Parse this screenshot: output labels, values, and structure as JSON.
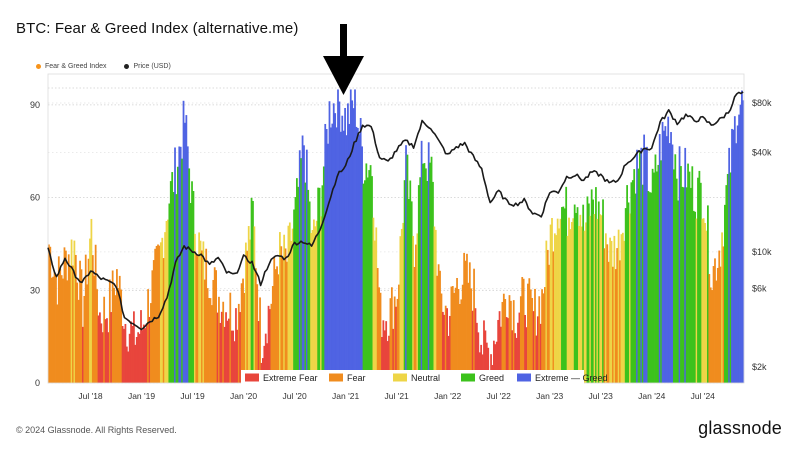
{
  "page": {
    "title": "BTC: Fear & Greed Index (alternative.me)",
    "top_legend": [
      {
        "label": "Fear & Greed Index",
        "color": "#f7931a"
      },
      {
        "label": "Price (USD)",
        "color": "#222222"
      }
    ],
    "copyright": "© 2024 Glassnode. All Rights Reserved.",
    "brand": "glassnode",
    "annotation_icon": "down-arrow-icon"
  },
  "chart_data": {
    "type": "bar",
    "title": "BTC: Fear & Greed Index (alternative.me)",
    "x_range": [
      "2018-02",
      "2024-11"
    ],
    "x_ticks": [
      "Jul '18",
      "Jan '19",
      "Jul '19",
      "Jan '20",
      "Jul '20",
      "Jan '21",
      "Jul '21",
      "Jan '22",
      "Jul '22",
      "Jan '23",
      "Jul '23",
      "Jan '24",
      "Jul '24"
    ],
    "y_left": {
      "ticks": [
        0,
        30,
        60,
        90
      ],
      "range": [
        0,
        100
      ],
      "label": ""
    },
    "y_right": {
      "scale": "log",
      "ticks": [
        "$2k",
        "$6k",
        "$10k",
        "$40k",
        "$80k"
      ],
      "tick_values": [
        2000,
        6000,
        10000,
        40000,
        80000
      ],
      "range": [
        1600,
        120000
      ],
      "label": ""
    },
    "legend_position": "bottom-center",
    "legend": [
      {
        "name": "Extreme Fear",
        "color": "#e8453c"
      },
      {
        "name": "Fear",
        "color": "#f08c1e"
      },
      {
        "name": "Neutral",
        "color": "#eed547"
      },
      {
        "name": "Greed",
        "color": "#3cc21c"
      },
      {
        "name": "Extreme — Greed",
        "color": "#4f63e3"
      }
    ],
    "fng_monthly": [
      {
        "month": "2018-02",
        "value": 45
      },
      {
        "month": "2018-03",
        "value": 33
      },
      {
        "month": "2018-04",
        "value": 40
      },
      {
        "month": "2018-05",
        "value": 45
      },
      {
        "month": "2018-06",
        "value": 25
      },
      {
        "month": "2018-07",
        "value": 50
      },
      {
        "month": "2018-08",
        "value": 22
      },
      {
        "month": "2018-09",
        "value": 24
      },
      {
        "month": "2018-10",
        "value": 35
      },
      {
        "month": "2018-11",
        "value": 20
      },
      {
        "month": "2018-12",
        "value": 15
      },
      {
        "month": "2019-01",
        "value": 18
      },
      {
        "month": "2019-02",
        "value": 30
      },
      {
        "month": "2019-03",
        "value": 40
      },
      {
        "month": "2019-04",
        "value": 58
      },
      {
        "month": "2019-05",
        "value": 70
      },
      {
        "month": "2019-06",
        "value": 85
      },
      {
        "month": "2019-07",
        "value": 55
      },
      {
        "month": "2019-08",
        "value": 40
      },
      {
        "month": "2019-09",
        "value": 35
      },
      {
        "month": "2019-10",
        "value": 28
      },
      {
        "month": "2019-11",
        "value": 25
      },
      {
        "month": "2019-12",
        "value": 22
      },
      {
        "month": "2020-01",
        "value": 38
      },
      {
        "month": "2020-02",
        "value": 55
      },
      {
        "month": "2020-03",
        "value": 14
      },
      {
        "month": "2020-04",
        "value": 25
      },
      {
        "month": "2020-05",
        "value": 42
      },
      {
        "month": "2020-06",
        "value": 40
      },
      {
        "month": "2020-07",
        "value": 55
      },
      {
        "month": "2020-08",
        "value": 78
      },
      {
        "month": "2020-09",
        "value": 45
      },
      {
        "month": "2020-10",
        "value": 62
      },
      {
        "month": "2020-11",
        "value": 88
      },
      {
        "month": "2020-12",
        "value": 92
      },
      {
        "month": "2021-01",
        "value": 85
      },
      {
        "month": "2021-02",
        "value": 92
      },
      {
        "month": "2021-03",
        "value": 72
      },
      {
        "month": "2021-04",
        "value": 70
      },
      {
        "month": "2021-05",
        "value": 22
      },
      {
        "month": "2021-06",
        "value": 22
      },
      {
        "month": "2021-07",
        "value": 30
      },
      {
        "month": "2021-08",
        "value": 70
      },
      {
        "month": "2021-09",
        "value": 45
      },
      {
        "month": "2021-10",
        "value": 75
      },
      {
        "month": "2021-11",
        "value": 68
      },
      {
        "month": "2021-12",
        "value": 28
      },
      {
        "month": "2022-01",
        "value": 22
      },
      {
        "month": "2022-02",
        "value": 32
      },
      {
        "month": "2022-03",
        "value": 35
      },
      {
        "month": "2022-04",
        "value": 30
      },
      {
        "month": "2022-05",
        "value": 12
      },
      {
        "month": "2022-06",
        "value": 10
      },
      {
        "month": "2022-07",
        "value": 22
      },
      {
        "month": "2022-08",
        "value": 30
      },
      {
        "month": "2022-09",
        "value": 22
      },
      {
        "month": "2022-10",
        "value": 28
      },
      {
        "month": "2022-11",
        "value": 22
      },
      {
        "month": "2022-12",
        "value": 28
      },
      {
        "month": "2023-01",
        "value": 48
      },
      {
        "month": "2023-02",
        "value": 58
      },
      {
        "month": "2023-03",
        "value": 55
      },
      {
        "month": "2023-04",
        "value": 62
      },
      {
        "month": "2023-05",
        "value": 50
      },
      {
        "month": "2023-06",
        "value": 60
      },
      {
        "month": "2023-07",
        "value": 55
      },
      {
        "month": "2023-08",
        "value": 42
      },
      {
        "month": "2023-09",
        "value": 45
      },
      {
        "month": "2023-10",
        "value": 60
      },
      {
        "month": "2023-11",
        "value": 70
      },
      {
        "month": "2023-12",
        "value": 72
      },
      {
        "month": "2024-01",
        "value": 62
      },
      {
        "month": "2024-02",
        "value": 78
      },
      {
        "month": "2024-03",
        "value": 85
      },
      {
        "month": "2024-04",
        "value": 68
      },
      {
        "month": "2024-05",
        "value": 68
      },
      {
        "month": "2024-06",
        "value": 62
      },
      {
        "month": "2024-07",
        "value": 62
      },
      {
        "month": "2024-08",
        "value": 35
      },
      {
        "month": "2024-09",
        "value": 45
      },
      {
        "month": "2024-10",
        "value": 68
      },
      {
        "month": "2024-11",
        "value": 90
      }
    ],
    "price_monthly": [
      {
        "month": "2018-02",
        "value": 10300
      },
      {
        "month": "2018-03",
        "value": 7000
      },
      {
        "month": "2018-04",
        "value": 9200
      },
      {
        "month": "2018-05",
        "value": 7500
      },
      {
        "month": "2018-06",
        "value": 6400
      },
      {
        "month": "2018-07",
        "value": 7700
      },
      {
        "month": "2018-08",
        "value": 7000
      },
      {
        "month": "2018-09",
        "value": 6600
      },
      {
        "month": "2018-10",
        "value": 6300
      },
      {
        "month": "2018-11",
        "value": 4000
      },
      {
        "month": "2018-12",
        "value": 3700
      },
      {
        "month": "2019-01",
        "value": 3450
      },
      {
        "month": "2019-02",
        "value": 3800
      },
      {
        "month": "2019-03",
        "value": 4100
      },
      {
        "month": "2019-04",
        "value": 5300
      },
      {
        "month": "2019-05",
        "value": 8500
      },
      {
        "month": "2019-06",
        "value": 10800
      },
      {
        "month": "2019-07",
        "value": 10100
      },
      {
        "month": "2019-08",
        "value": 9600
      },
      {
        "month": "2019-09",
        "value": 8300
      },
      {
        "month": "2019-10",
        "value": 9200
      },
      {
        "month": "2019-11",
        "value": 7500
      },
      {
        "month": "2019-12",
        "value": 7200
      },
      {
        "month": "2020-01",
        "value": 9300
      },
      {
        "month": "2020-02",
        "value": 8600
      },
      {
        "month": "2020-03",
        "value": 6400
      },
      {
        "month": "2020-04",
        "value": 8600
      },
      {
        "month": "2020-05",
        "value": 9500
      },
      {
        "month": "2020-06",
        "value": 9100
      },
      {
        "month": "2020-07",
        "value": 11300
      },
      {
        "month": "2020-08",
        "value": 11600
      },
      {
        "month": "2020-09",
        "value": 10800
      },
      {
        "month": "2020-10",
        "value": 13800
      },
      {
        "month": "2020-11",
        "value": 19700
      },
      {
        "month": "2020-12",
        "value": 29000
      },
      {
        "month": "2021-01",
        "value": 33100
      },
      {
        "month": "2021-02",
        "value": 45000
      },
      {
        "month": "2021-03",
        "value": 58900
      },
      {
        "month": "2021-04",
        "value": 57700
      },
      {
        "month": "2021-05",
        "value": 37300
      },
      {
        "month": "2021-06",
        "value": 35000
      },
      {
        "month": "2021-07",
        "value": 41500
      },
      {
        "month": "2021-08",
        "value": 47100
      },
      {
        "month": "2021-09",
        "value": 43800
      },
      {
        "month": "2021-10",
        "value": 61300
      },
      {
        "month": "2021-11",
        "value": 57000
      },
      {
        "month": "2021-12",
        "value": 46300
      },
      {
        "month": "2022-01",
        "value": 38500
      },
      {
        "month": "2022-02",
        "value": 43200
      },
      {
        "month": "2022-03",
        "value": 45500
      },
      {
        "month": "2022-04",
        "value": 37700
      },
      {
        "month": "2022-05",
        "value": 31800
      },
      {
        "month": "2022-06",
        "value": 19900
      },
      {
        "month": "2022-07",
        "value": 23300
      },
      {
        "month": "2022-08",
        "value": 20000
      },
      {
        "month": "2022-09",
        "value": 19400
      },
      {
        "month": "2022-10",
        "value": 20500
      },
      {
        "month": "2022-11",
        "value": 17200
      },
      {
        "month": "2022-12",
        "value": 16500
      },
      {
        "month": "2023-01",
        "value": 23100
      },
      {
        "month": "2023-02",
        "value": 23100
      },
      {
        "month": "2023-03",
        "value": 28500
      },
      {
        "month": "2023-04",
        "value": 29300
      },
      {
        "month": "2023-05",
        "value": 27200
      },
      {
        "month": "2023-06",
        "value": 30500
      },
      {
        "month": "2023-07",
        "value": 29200
      },
      {
        "month": "2023-08",
        "value": 26000
      },
      {
        "month": "2023-09",
        "value": 27000
      },
      {
        "month": "2023-10",
        "value": 34500
      },
      {
        "month": "2023-11",
        "value": 37700
      },
      {
        "month": "2023-12",
        "value": 42300
      },
      {
        "month": "2024-01",
        "value": 42600
      },
      {
        "month": "2024-02",
        "value": 61200
      },
      {
        "month": "2024-03",
        "value": 71300
      },
      {
        "month": "2024-04",
        "value": 60600
      },
      {
        "month": "2024-05",
        "value": 67500
      },
      {
        "month": "2024-06",
        "value": 62700
      },
      {
        "month": "2024-07",
        "value": 64600
      },
      {
        "month": "2024-08",
        "value": 58900
      },
      {
        "month": "2024-09",
        "value": 63300
      },
      {
        "month": "2024-10",
        "value": 70200
      },
      {
        "month": "2024-11",
        "value": 91000
      }
    ]
  }
}
